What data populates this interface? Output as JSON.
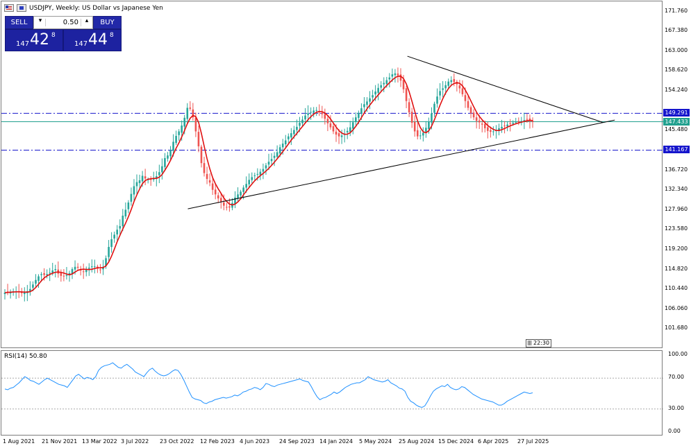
{
  "header": {
    "title": "USDJPY, Weekly:  US Dollar vs Japanese Yen"
  },
  "trade_panel": {
    "sell_label": "SELL",
    "buy_label": "BUY",
    "volume": "0.50",
    "sell_quote": {
      "prefix": "147",
      "big": "42",
      "sup": "8"
    },
    "buy_quote": {
      "prefix": "147",
      "big": "44",
      "sup": "8"
    }
  },
  "clock": "22:30",
  "colors": {
    "bull": "#26a69a",
    "bear": "#ef5350",
    "ma": "#e01010",
    "rsi": "#1e90ff",
    "level": "#1515cc",
    "current": "#20a08e",
    "trendline": "#000000"
  },
  "chart_data": [
    {
      "type": "candlestick",
      "title": "USDJPY, Weekly:  US Dollar vs Japanese Yen",
      "ylim": [
        97.3,
        174.0
      ],
      "price_ticks": [
        "171.760",
        "167.380",
        "163.000",
        "158.620",
        "154.240",
        "145.480",
        "141.100",
        "136.720",
        "132.340",
        "127.960",
        "123.580",
        "119.200",
        "114.820",
        "110.440",
        "106.060",
        "101.680"
      ],
      "date_ticks": [
        "1 Aug 2021",
        "21 Nov 2021",
        "13 Mar 2022",
        "3 Jul 2022",
        "23 Oct 2022",
        "12 Feb 2023",
        "4 Jun 2023",
        "24 Sep 2023",
        "14 Jan 2024",
        "5 May 2024",
        "25 Aug 2024",
        "15 Dec 2024",
        "6 Apr 2025",
        "27 Jul 2025"
      ],
      "levels": [
        {
          "price": 149.291,
          "label": "149.291",
          "style": "dashdot"
        },
        {
          "price": 141.167,
          "label": "141.167",
          "style": "dashdot"
        }
      ],
      "current_price": {
        "price": 147.433,
        "label": "147.433"
      },
      "close_series_by_week": [
        109.7,
        109.8,
        109.9,
        110.0,
        110.0,
        109.8,
        109.6,
        109.7,
        110.0,
        110.5,
        111.5,
        112.5,
        113.3,
        113.8,
        113.6,
        113.8,
        114.1,
        114.6,
        114.9,
        113.9,
        113.4,
        113.3,
        113.6,
        114.0,
        114.9,
        115.4,
        115.2,
        114.6,
        114.3,
        114.7,
        115.2,
        115.5,
        115.5,
        115.0,
        114.8,
        115.4,
        117.3,
        119.8,
        121.5,
        122.5,
        123.6,
        124.4,
        126.7,
        128.0,
        129.6,
        131.5,
        133.2,
        134.1,
        134.5,
        135.5,
        134.9,
        134.7,
        134.6,
        135.0,
        135.4,
        136.3,
        137.6,
        139.4,
        140.0,
        141.2,
        143.0,
        144.3,
        145.3,
        146.6,
        148.3,
        150.5,
        150.3,
        148.4,
        145.3,
        142.0,
        138.3,
        136.1,
        134.8,
        134.0,
        132.4,
        131.4,
        130.5,
        129.8,
        128.9,
        128.6,
        128.5,
        129.5,
        130.7,
        131.4,
        132.0,
        132.9,
        133.7,
        134.6,
        135.2,
        135.6,
        135.9,
        136.4,
        137.0,
        137.8,
        138.6,
        139.2,
        139.9,
        140.7,
        141.8,
        142.6,
        143.3,
        144.2,
        144.9,
        145.6,
        146.3,
        147.2,
        147.9,
        148.8,
        149.3,
        149.6,
        149.9,
        150.0,
        149.7,
        149.1,
        148.1,
        147.1,
        146.2,
        145.3,
        144.6,
        144.2,
        144.4,
        144.8,
        145.4,
        146.2,
        147.3,
        148.4,
        149.4,
        150.4,
        151.3,
        151.9,
        152.6,
        153.3,
        154.1,
        154.9,
        155.5,
        156.0,
        156.6,
        157.2,
        157.9,
        158.1,
        157.7,
        156.5,
        154.6,
        152.0,
        149.5,
        147.2,
        145.3,
        144.2,
        144.4,
        145.0,
        146.1,
        147.5,
        149.3,
        151.4,
        153.0,
        154.2,
        154.8,
        155.5,
        156.3,
        156.6,
        156.2,
        155.7,
        154.8,
        153.5,
        152.0,
        150.5,
        149.3,
        148.4,
        147.6,
        147.3,
        146.8,
        146.0,
        145.4,
        145.2,
        145.3,
        145.6,
        146.0,
        146.3,
        146.5,
        146.8,
        147.0,
        147.2,
        147.4,
        147.5,
        147.6,
        147.8,
        148.0,
        147.7,
        147.4
      ],
      "moving_average": "red line over candles",
      "trendlines": [
        {
          "from": [
            "2024-05",
            161.9
          ],
          "to": [
            "2025-09",
            147.3
          ],
          "label": ""
        },
        {
          "from": [
            "2022-11",
            128.2
          ],
          "to": [
            "2025-10",
            147.8
          ],
          "label": ""
        }
      ]
    },
    {
      "type": "line",
      "title": "RSI(14) 50.80",
      "ylim": [
        0,
        100
      ],
      "y_ticks": [
        "100.00",
        "70.00",
        "30.00",
        "0.00"
      ],
      "levels": [
        70,
        30
      ],
      "last_value": 50.8,
      "values": [
        56,
        55,
        57,
        58,
        61,
        64,
        68,
        72,
        70,
        67,
        66,
        64,
        62,
        65,
        68,
        70,
        68,
        66,
        64,
        62,
        61,
        60,
        58,
        63,
        68,
        73,
        75,
        72,
        69,
        71,
        70,
        68,
        72,
        80,
        84,
        86,
        87,
        88,
        90,
        87,
        84,
        83,
        86,
        88,
        85,
        82,
        78,
        76,
        74,
        72,
        77,
        81,
        83,
        79,
        76,
        74,
        73,
        74,
        76,
        79,
        81,
        80,
        75,
        68,
        60,
        52,
        45,
        43,
        42,
        41,
        38,
        37,
        39,
        40,
        42,
        43,
        44,
        45,
        44,
        45,
        46,
        48,
        47,
        49,
        52,
        53,
        55,
        56,
        58,
        57,
        55,
        58,
        63,
        62,
        60,
        59,
        61,
        62,
        63,
        64,
        65,
        66,
        67,
        68,
        69,
        67,
        66,
        65,
        59,
        52,
        46,
        42,
        44,
        45,
        47,
        49,
        52,
        50,
        52,
        55,
        58,
        60,
        62,
        63,
        64,
        64,
        66,
        68,
        72,
        70,
        68,
        67,
        66,
        65,
        66,
        68,
        64,
        62,
        60,
        57,
        56,
        53,
        45,
        40,
        38,
        35,
        33,
        32,
        34,
        40,
        47,
        53,
        56,
        58,
        60,
        59,
        62,
        58,
        56,
        55,
        56,
        59,
        58,
        55,
        52,
        49,
        47,
        45,
        43,
        42,
        41,
        40,
        39,
        37,
        35,
        35,
        37,
        40,
        42,
        44,
        46,
        48,
        50,
        52,
        51,
        50,
        51
      ]
    }
  ]
}
